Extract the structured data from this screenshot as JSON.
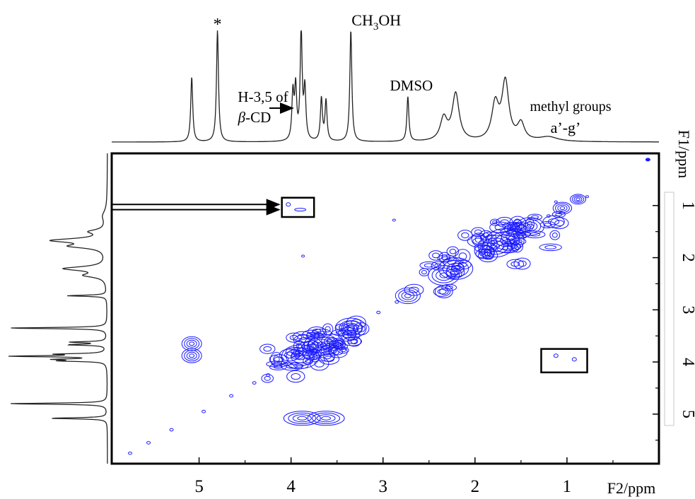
{
  "chart_data": {
    "type": "contour",
    "title": "",
    "xlabel": "F2/ppm",
    "ylabel": "F1/ppm",
    "xlim": [
      5.95,
      0.0
    ],
    "ylim": [
      0.0,
      5.95
    ],
    "x_ticks": [
      5,
      4,
      3,
      2,
      1
    ],
    "y_ticks": [
      1,
      2,
      3,
      4,
      5
    ],
    "x_tick_labels": [
      "5",
      "4",
      "3",
      "2",
      "1"
    ],
    "y_tick_labels": [
      "1",
      "2",
      "3",
      "4",
      "5"
    ],
    "spectrum_peaks": [
      {
        "ppm": 5.08,
        "height": 0.58
      },
      {
        "ppm": 4.8,
        "height": 1.0
      },
      {
        "ppm": 3.98,
        "height": 0.42
      },
      {
        "ppm": 3.95,
        "height": 0.46
      },
      {
        "ppm": 3.89,
        "height": 0.98
      },
      {
        "ppm": 3.85,
        "height": 0.45
      },
      {
        "ppm": 3.67,
        "height": 0.38
      },
      {
        "ppm": 3.62,
        "height": 0.36
      },
      {
        "ppm": 3.35,
        "height": 1.0
      },
      {
        "ppm": 2.73,
        "height": 0.4
      },
      {
        "ppm": 2.34,
        "height": 0.2
      },
      {
        "ppm": 2.21,
        "height": 0.42
      },
      {
        "ppm": 1.78,
        "height": 0.32
      },
      {
        "ppm": 1.67,
        "height": 0.52
      },
      {
        "ppm": 1.5,
        "height": 0.15
      },
      {
        "ppm": 1.2,
        "height": 0.04
      }
    ],
    "cross_peaks": [
      {
        "f2": 5.08,
        "f1": 3.65
      },
      {
        "f2": 5.08,
        "f1": 3.88
      },
      {
        "f2": 3.88,
        "f1": 5.08
      },
      {
        "f2": 3.62,
        "f1": 5.08
      },
      {
        "f2": 4.03,
        "f1": 0.98
      },
      {
        "f2": 3.9,
        "f1": 1.08
      },
      {
        "f2": 1.12,
        "f1": 3.88
      },
      {
        "f2": 0.92,
        "f1": 3.95
      }
    ],
    "diagonal_peaks": [
      {
        "ppm": 3.35,
        "size": 1.0
      },
      {
        "ppm": 3.67,
        "size": 1.1
      },
      {
        "ppm": 3.9,
        "size": 1.2
      },
      {
        "ppm": 2.73,
        "size": 0.8
      },
      {
        "ppm": 2.34,
        "size": 1.0
      },
      {
        "ppm": 2.21,
        "size": 1.1
      },
      {
        "ppm": 1.78,
        "size": 1.1
      },
      {
        "ppm": 1.67,
        "size": 1.2
      },
      {
        "ppm": 1.4,
        "size": 0.9
      },
      {
        "ppm": 1.05,
        "size": 0.6
      },
      {
        "ppm": 0.88,
        "size": 0.5
      }
    ],
    "annotations": [
      {
        "text": "*",
        "ppm": 4.8
      },
      {
        "text": "CH",
        "sub": "3",
        "suffix": "OH",
        "ppm": 3.35
      },
      {
        "text": "H-3,5 of",
        "line2_italic": "β",
        "line2": "-CD",
        "ppm": 3.97
      },
      {
        "text": "DMSO",
        "ppm": 2.73
      },
      {
        "text": "methyl groups",
        "line2": "a’-g’",
        "ppm": 1.3
      }
    ],
    "highlight_boxes": [
      {
        "f2_range": [
          4.1,
          3.75
        ],
        "f1_range": [
          0.85,
          1.22
        ]
      },
      {
        "f2_range": [
          1.28,
          0.78
        ],
        "f1_range": [
          3.75,
          4.2
        ]
      }
    ],
    "colors": {
      "contour": "#1a1aff",
      "axes": "#000000",
      "trace": "#222222"
    }
  }
}
